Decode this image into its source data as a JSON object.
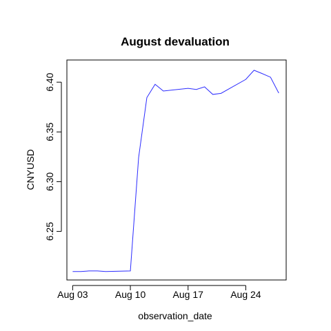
{
  "chart_data": {
    "type": "line",
    "title": "August devaluation",
    "xlabel": "observation_date",
    "ylabel": "CNYUSD",
    "x_ticks": [
      {
        "label": "Aug 03",
        "day": 3
      },
      {
        "label": "Aug 10",
        "day": 10
      },
      {
        "label": "Aug 17",
        "day": 17
      },
      {
        "label": "Aug 24",
        "day": 24
      }
    ],
    "y_ticks": [
      6.25,
      6.3,
      6.35,
      6.4
    ],
    "xlim": [
      2.3,
      28.9
    ],
    "ylim": [
      6.2012,
      6.4223
    ],
    "grid": false,
    "legend": "none",
    "color": "#2b2bff",
    "x": [
      3,
      4,
      5,
      6,
      7,
      10,
      11,
      12,
      13,
      14,
      17,
      18,
      19,
      20,
      21,
      24,
      25,
      26,
      27,
      28
    ],
    "values": [
      6.2097,
      6.2097,
      6.2103,
      6.2103,
      6.2097,
      6.2103,
      6.3242,
      6.3845,
      6.3979,
      6.3911,
      6.3938,
      6.3927,
      6.3953,
      6.3877,
      6.3888,
      6.4028,
      6.412,
      6.4086,
      6.405,
      6.389
    ]
  }
}
